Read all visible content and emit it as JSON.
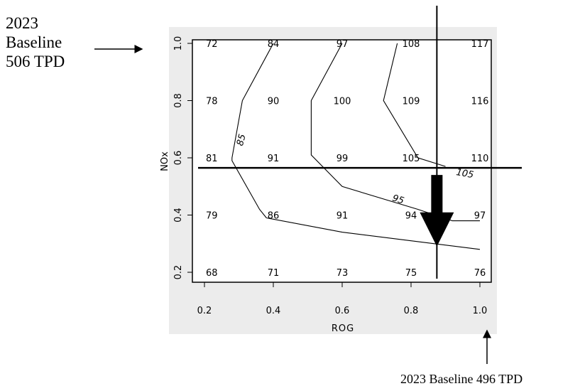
{
  "annotations": {
    "nox_baseline": [
      "2023",
      "Baseline",
      "506 TPD"
    ],
    "rog_baseline": "2023 Baseline 496 TPD"
  },
  "chart_data": {
    "type": "heatmap",
    "title": "",
    "xlabel": "ROG",
    "ylabel": "NOx",
    "x": [
      0.2,
      0.4,
      0.6,
      0.8,
      1.0
    ],
    "y": [
      1.0,
      0.8,
      0.6,
      0.4,
      0.2
    ],
    "xlim": [
      0.17,
      1.03
    ],
    "ylim": [
      0.17,
      1.03
    ],
    "x_tick_labels": [
      "0.2",
      "0.4",
      "0.6",
      "0.8",
      "1.0"
    ],
    "y_tick_labels": [
      "1.0",
      "0.8",
      "0.6",
      "0.4",
      "0.2"
    ],
    "cells": [
      [
        "72",
        "84",
        "97",
        "108",
        "117"
      ],
      [
        "78",
        "90",
        "100",
        "109",
        "116"
      ],
      [
        "81",
        "91",
        "99",
        "105",
        "110"
      ],
      [
        "79",
        "86",
        "91",
        "94",
        "97"
      ],
      [
        "68",
        "71",
        "73",
        "75",
        "76"
      ]
    ],
    "contours": [
      {
        "label": "85",
        "points": [
          [
            0.4,
            1.0
          ],
          [
            0.31,
            0.8
          ],
          [
            0.28,
            0.6
          ],
          [
            0.28,
            0.59
          ],
          [
            0.36,
            0.42
          ],
          [
            0.38,
            0.39
          ]
        ]
      },
      {
        "label": "95",
        "points": [
          [
            0.6,
            1.0
          ],
          [
            0.51,
            0.8
          ],
          [
            0.51,
            0.61
          ],
          [
            0.6,
            0.5
          ],
          [
            0.82,
            0.42
          ],
          [
            0.92,
            0.38
          ],
          [
            1.0,
            0.38
          ]
        ]
      },
      {
        "label": "105",
        "points": [
          [
            0.76,
            1.0
          ],
          [
            0.72,
            0.8
          ],
          [
            0.82,
            0.6
          ],
          [
            0.9,
            0.57
          ]
        ]
      },
      {
        "label": "",
        "points": [
          [
            0.38,
            0.39
          ],
          [
            0.6,
            0.34
          ],
          [
            0.8,
            0.31
          ],
          [
            1.0,
            0.28
          ]
        ]
      }
    ],
    "reference_lines": {
      "x": 0.875,
      "y": 0.565
    },
    "arrow": {
      "x": 0.875,
      "from_y": 0.54,
      "to_y": 0.29
    }
  }
}
